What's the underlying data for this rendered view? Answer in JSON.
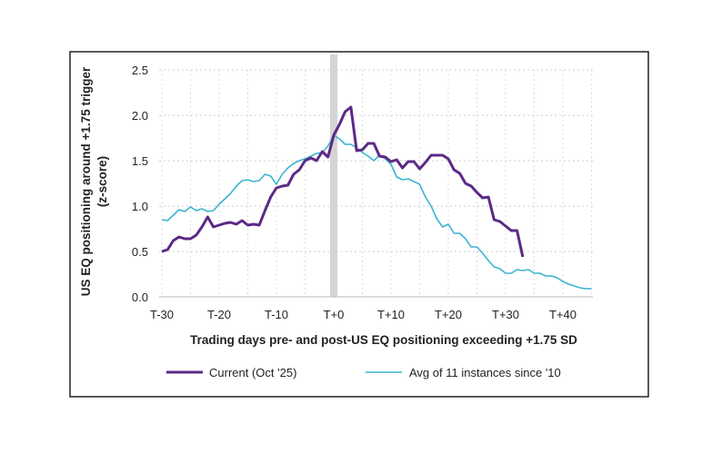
{
  "chart_data": {
    "type": "line",
    "title": "",
    "xlabel": "Trading days pre- and post-US EQ positioning exceeding +1.75 SD",
    "ylabel": "US EQ positioning around +1.75 trigger (z-score)",
    "ylabel_lines": [
      "US EQ positioning around +1.75 trigger",
      "(z-score)"
    ],
    "xlim": [
      -30,
      45
    ],
    "ylim": [
      0,
      2.5
    ],
    "yticks": [
      "0.0",
      "0.5",
      "1.0",
      "1.5",
      "2.0",
      "2.5"
    ],
    "xtick_labels": [
      "T-30",
      "T-20",
      "T-10",
      "T+0",
      "T+10",
      "T+20",
      "T+30",
      "T+40"
    ],
    "xtick_values": [
      -30,
      -20,
      -10,
      0,
      10,
      20,
      30,
      40
    ],
    "grid": true,
    "highlight_day": 0,
    "legend_position": "bottom",
    "series": [
      {
        "name": "Current (Oct '25)",
        "color": "#5b2a86",
        "x_start": -30,
        "values": [
          0.5,
          0.52,
          0.62,
          0.66,
          0.64,
          0.64,
          0.68,
          0.77,
          0.88,
          0.77,
          0.79,
          0.81,
          0.82,
          0.8,
          0.84,
          0.79,
          0.8,
          0.79,
          0.95,
          1.1,
          1.2,
          1.22,
          1.23,
          1.35,
          1.4,
          1.5,
          1.53,
          1.5,
          1.6,
          1.54,
          1.78,
          1.9,
          2.04,
          2.09,
          1.61,
          1.62,
          1.69,
          1.69,
          1.55,
          1.54,
          1.49,
          1.51,
          1.42,
          1.49,
          1.49,
          1.41,
          1.48,
          1.56,
          1.56,
          1.56,
          1.52,
          1.4,
          1.36,
          1.25,
          1.22,
          1.15,
          1.09,
          1.1,
          0.85,
          0.83,
          0.78,
          0.73,
          0.73,
          0.44
        ]
      },
      {
        "name": "Avg of 11 instances since '10",
        "color": "#3bb4d0",
        "x_start": -30,
        "values": [
          0.85,
          0.84,
          0.9,
          0.96,
          0.94,
          0.99,
          0.95,
          0.97,
          0.94,
          0.95,
          1.02,
          1.08,
          1.14,
          1.22,
          1.28,
          1.29,
          1.27,
          1.28,
          1.35,
          1.33,
          1.24,
          1.35,
          1.42,
          1.47,
          1.5,
          1.52,
          1.55,
          1.58,
          1.59,
          1.66,
          1.78,
          1.74,
          1.68,
          1.68,
          1.64,
          1.59,
          1.55,
          1.5,
          1.56,
          1.52,
          1.46,
          1.32,
          1.29,
          1.3,
          1.27,
          1.24,
          1.1,
          1.0,
          0.86,
          0.77,
          0.8,
          0.7,
          0.7,
          0.64,
          0.55,
          0.55,
          0.48,
          0.4,
          0.33,
          0.31,
          0.26,
          0.26,
          0.3,
          0.29,
          0.3,
          0.26,
          0.26,
          0.23,
          0.23,
          0.21,
          0.17,
          0.14,
          0.12,
          0.1,
          0.09,
          0.09
        ]
      }
    ]
  }
}
